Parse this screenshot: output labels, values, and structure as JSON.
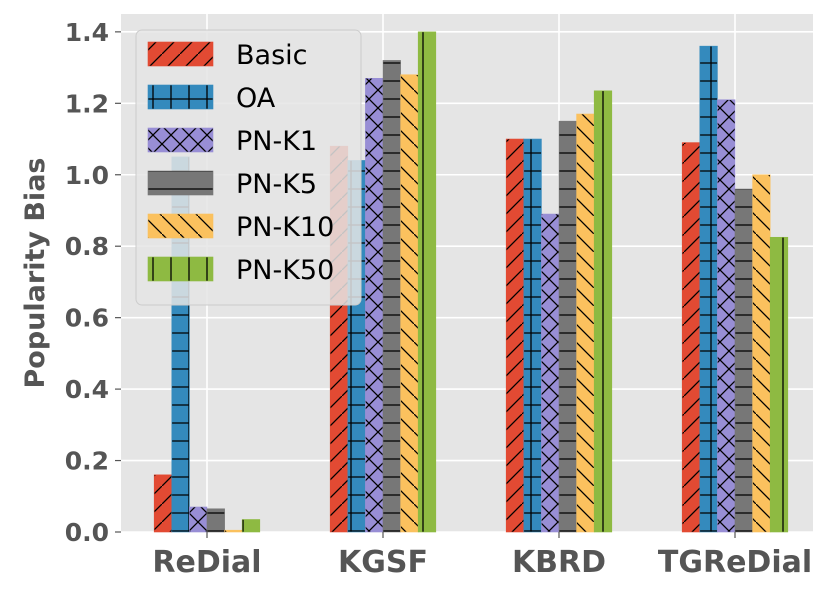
{
  "chart_data": {
    "type": "bar",
    "title": "",
    "xlabel": "",
    "ylabel": "Popularity Bias",
    "ylim": [
      0,
      1.45
    ],
    "yticks": [
      0.0,
      0.2,
      0.4,
      0.6,
      0.8,
      1.0,
      1.2,
      1.4
    ],
    "ytick_labels": [
      "0.0",
      "0.2",
      "0.4",
      "0.6",
      "0.8",
      "1.0",
      "1.2",
      "1.4"
    ],
    "grid": true,
    "legend_position": "top-left",
    "categories": [
      "ReDial",
      "KGSF",
      "KBRD",
      "TGReDial"
    ],
    "series": [
      {
        "name": "Basic",
        "color": "#E24A33",
        "hatch": "diagonal",
        "values": [
          0.16,
          1.08,
          1.1,
          1.09
        ]
      },
      {
        "name": "OA",
        "color": "#348ABD",
        "hatch": "plus",
        "values": [
          1.05,
          1.04,
          1.1,
          1.36
        ]
      },
      {
        "name": "PN-K1",
        "color": "#988ED5",
        "hatch": "cross",
        "values": [
          0.07,
          1.27,
          0.89,
          1.21
        ]
      },
      {
        "name": "PN-K5",
        "color": "#777777",
        "hatch": "horizontal",
        "values": [
          0.065,
          1.32,
          1.15,
          0.96
        ]
      },
      {
        "name": "PN-K10",
        "color": "#FBC15E",
        "hatch": "backdiagonal",
        "values": [
          0.005,
          1.28,
          1.17,
          1.0
        ]
      },
      {
        "name": "PN-K50",
        "color": "#8EBA42",
        "hatch": "vertical",
        "values": [
          0.035,
          1.4,
          1.235,
          0.825
        ]
      }
    ]
  }
}
